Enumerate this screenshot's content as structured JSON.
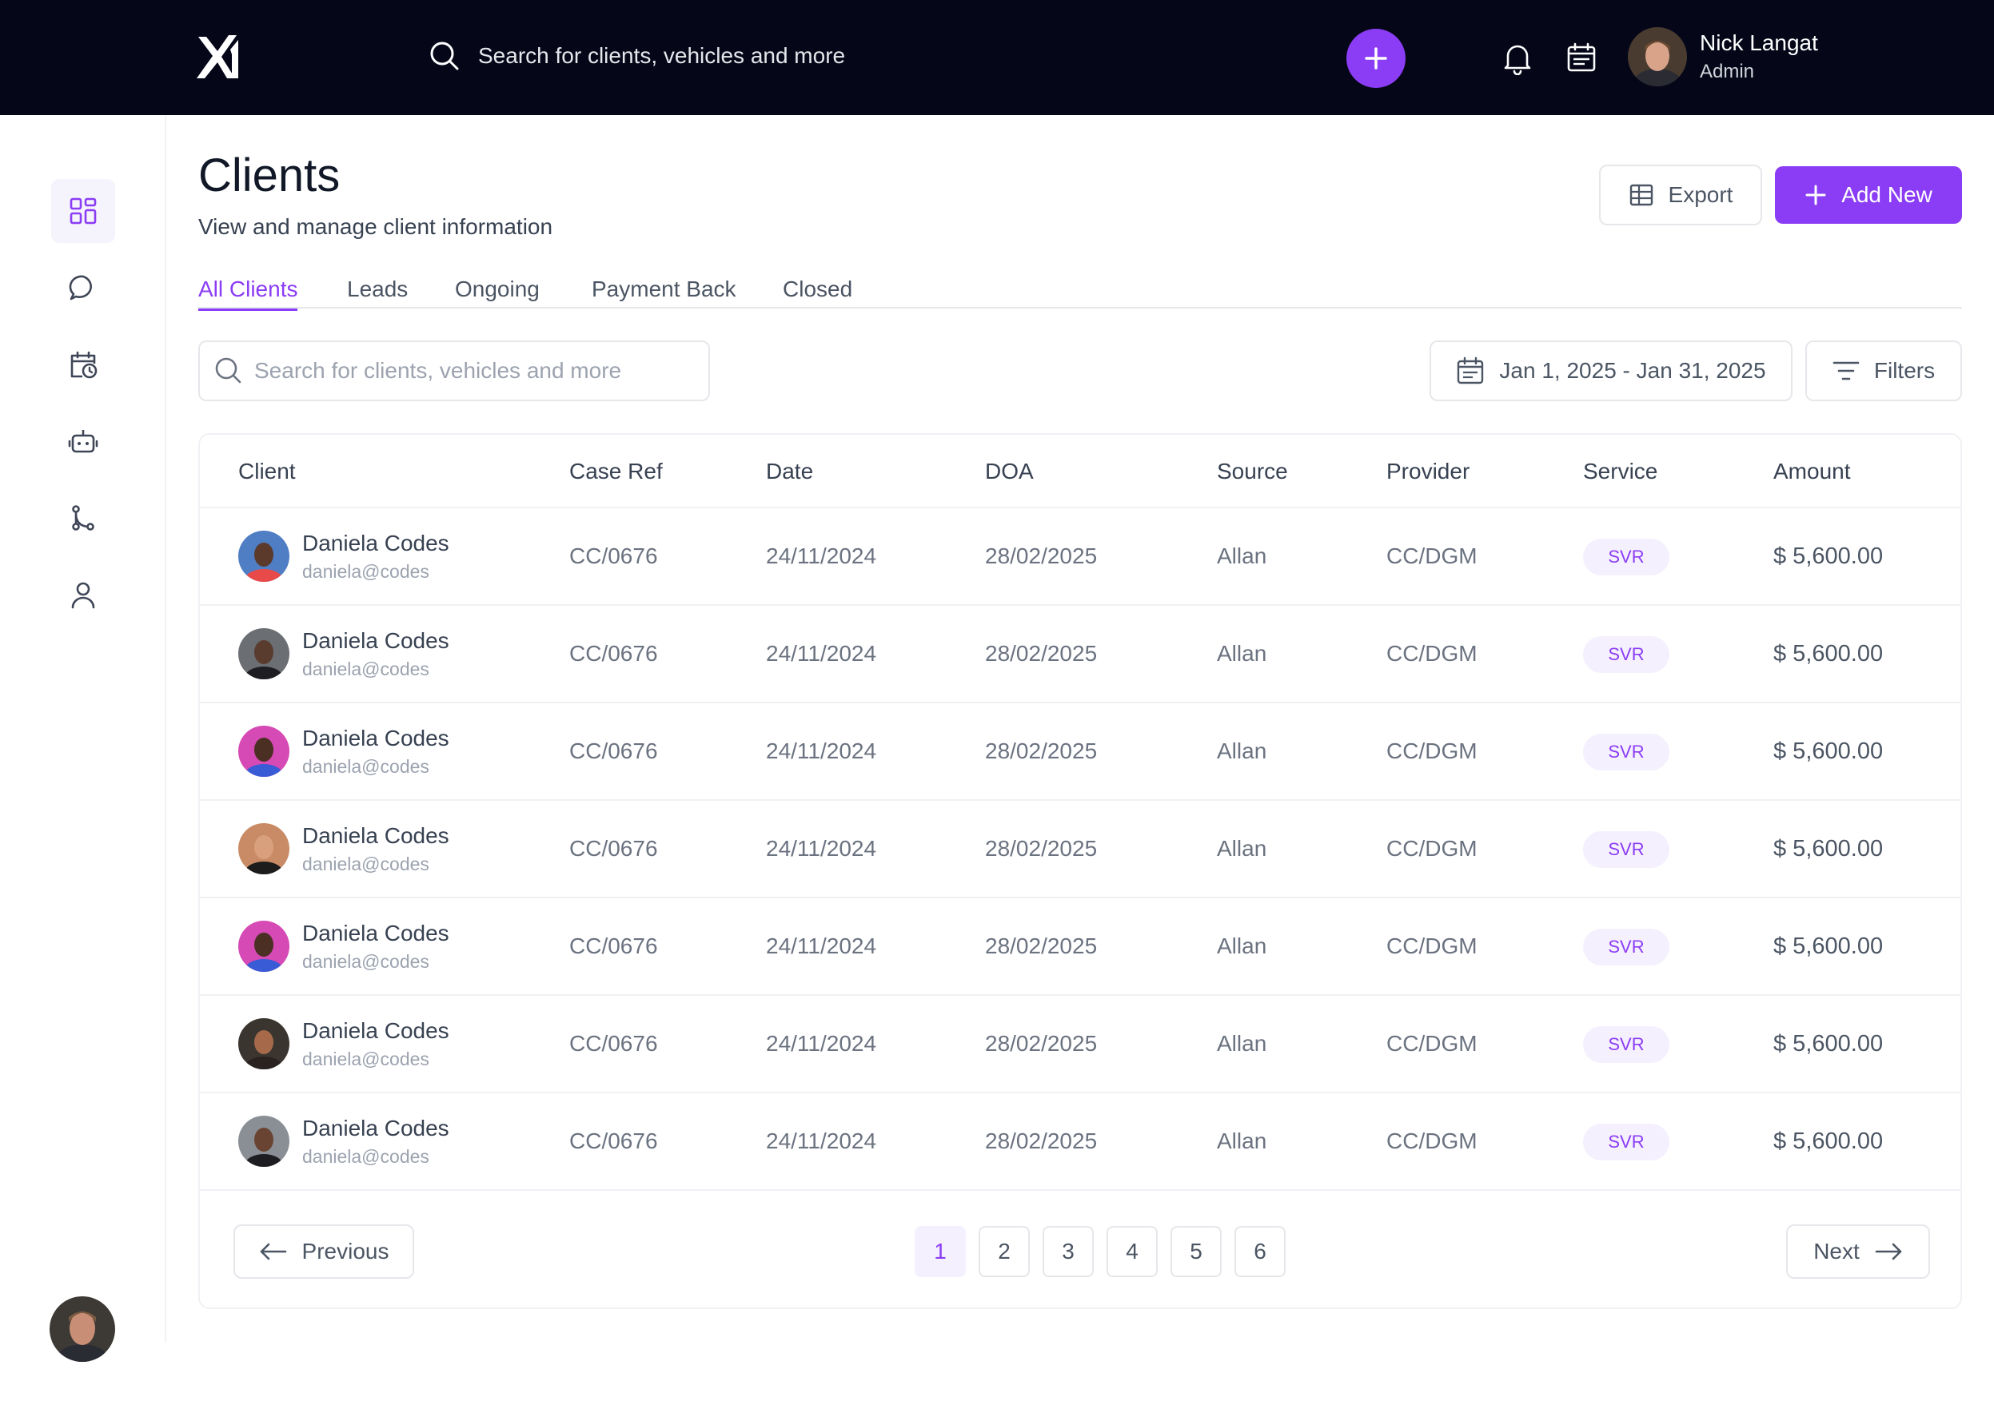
{
  "topbar": {
    "search_placeholder": "Search for clients, vehicles and more",
    "user_name": "Nick Langat",
    "user_role": "Admin"
  },
  "page": {
    "title": "Clients",
    "subtitle": "View and manage client information",
    "export_label": "Export",
    "add_label": "Add New"
  },
  "tabs": [
    {
      "label": "All Clients",
      "active": true
    },
    {
      "label": "Leads"
    },
    {
      "label": "Ongoing"
    },
    {
      "label": "Payment Back"
    },
    {
      "label": "Closed"
    }
  ],
  "filters": {
    "search_placeholder": "Search for clients, vehicles and more",
    "date_range": "Jan 1, 2025 - Jan 31, 2025",
    "filters_label": "Filters"
  },
  "table": {
    "headers": [
      "Client",
      "Case Ref",
      "Date",
      "DOA",
      "Source",
      "Provider",
      "Service",
      "Amount"
    ],
    "rows": [
      {
        "name": "Daniela Codes",
        "email": "daniela@codes",
        "case_ref": "CC/0676",
        "date": "24/11/2024",
        "doa": "28/02/2025",
        "source": "Allan",
        "provider": "CC/DGM",
        "service": "SVR",
        "amount": "$ 5,600.00"
      },
      {
        "name": "Daniela Codes",
        "email": "daniela@codes",
        "case_ref": "CC/0676",
        "date": "24/11/2024",
        "doa": "28/02/2025",
        "source": "Allan",
        "provider": "CC/DGM",
        "service": "SVR",
        "amount": "$ 5,600.00"
      },
      {
        "name": "Daniela Codes",
        "email": "daniela@codes",
        "case_ref": "CC/0676",
        "date": "24/11/2024",
        "doa": "28/02/2025",
        "source": "Allan",
        "provider": "CC/DGM",
        "service": "SVR",
        "amount": "$ 5,600.00"
      },
      {
        "name": "Daniela Codes",
        "email": "daniela@codes",
        "case_ref": "CC/0676",
        "date": "24/11/2024",
        "doa": "28/02/2025",
        "source": "Allan",
        "provider": "CC/DGM",
        "service": "SVR",
        "amount": "$ 5,600.00"
      },
      {
        "name": "Daniela Codes",
        "email": "daniela@codes",
        "case_ref": "CC/0676",
        "date": "24/11/2024",
        "doa": "28/02/2025",
        "source": "Allan",
        "provider": "CC/DGM",
        "service": "SVR",
        "amount": "$ 5,600.00"
      },
      {
        "name": "Daniela Codes",
        "email": "daniela@codes",
        "case_ref": "CC/0676",
        "date": "24/11/2024",
        "doa": "28/02/2025",
        "source": "Allan",
        "provider": "CC/DGM",
        "service": "SVR",
        "amount": "$ 5,600.00"
      },
      {
        "name": "Daniela Codes",
        "email": "daniela@codes",
        "case_ref": "CC/0676",
        "date": "24/11/2024",
        "doa": "28/02/2025",
        "source": "Allan",
        "provider": "CC/DGM",
        "service": "SVR",
        "amount": "$ 5,600.00"
      }
    ]
  },
  "pagination": {
    "previous": "Previous",
    "next": "Next",
    "pages": [
      "1",
      "2",
      "3",
      "4",
      "5",
      "6"
    ],
    "current": "1"
  },
  "colors": {
    "accent": "#8b3cf5",
    "topbar_bg": "#050719"
  },
  "icons": {
    "sidebar": [
      "dashboard-icon",
      "chat-icon",
      "calendar-clock-icon",
      "robot-icon",
      "git-branch-icon",
      "user-icon"
    ]
  }
}
